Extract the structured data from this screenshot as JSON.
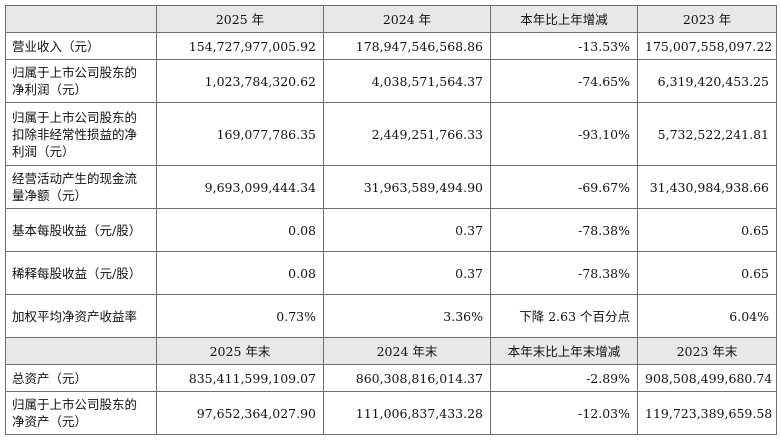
{
  "header1": {
    "corner": "",
    "cols": [
      "2025 年",
      "2024 年",
      "本年比上年增减",
      "2023 年"
    ]
  },
  "rows1": [
    {
      "label": "营业收入（元）",
      "v": [
        "154,727,977,005.92",
        "178,947,546,568.86",
        "-13.53%",
        "175,007,558,097.22"
      ]
    },
    {
      "label": "归属于上市公司股东的净利润（元）",
      "v": [
        "1,023,784,320.62",
        "4,038,571,564.37",
        "-74.65%",
        "6,319,420,453.25"
      ]
    },
    {
      "label": "归属于上市公司股东的扣除非经常性损益的净利润（元）",
      "v": [
        "169,077,786.35",
        "2,449,251,766.33",
        "-93.10%",
        "5,732,522,241.81"
      ]
    },
    {
      "label": "经营活动产生的现金流量净额（元）",
      "v": [
        "9,693,099,444.34",
        "31,963,589,494.90",
        "-69.67%",
        "31,430,984,938.66"
      ]
    },
    {
      "label": "基本每股收益（元/股）",
      "v": [
        "0.08",
        "0.37",
        "-78.38%",
        "0.65"
      ]
    },
    {
      "label": "稀释每股收益（元/股）",
      "v": [
        "0.08",
        "0.37",
        "-78.38%",
        "0.65"
      ]
    },
    {
      "label": "加权平均净资产收益率",
      "v": [
        "0.73%",
        "3.36%",
        "下降 2.63 个百分点",
        "6.04%"
      ]
    }
  ],
  "header2": {
    "corner": "",
    "cols": [
      "2025 年末",
      "2024 年末",
      "本年末比上年末增减",
      "2023 年末"
    ]
  },
  "rows2": [
    {
      "label": "总资产（元）",
      "v": [
        "835,411,599,109.07",
        "860,308,816,014.37",
        "-2.89%",
        "908,508,499,680.74"
      ]
    },
    {
      "label": "归属于上市公司股东的净资产（元）",
      "v": [
        "97,652,364,027.90",
        "111,006,837,433.28",
        "-12.03%",
        "119,723,389,659.58"
      ]
    }
  ]
}
